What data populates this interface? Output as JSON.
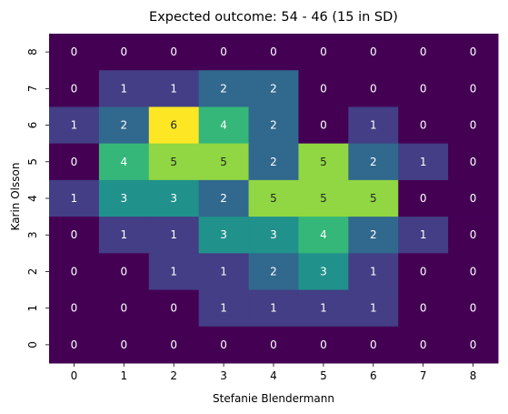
{
  "chart_data": {
    "type": "heatmap",
    "title": "Expected outcome: 54 - 46 (15 in SD)",
    "xlabel": "Stefanie Blendermann",
    "ylabel": "Karin Olsson",
    "x_ticks": [
      "0",
      "1",
      "2",
      "3",
      "4",
      "5",
      "6",
      "7",
      "8"
    ],
    "y_ticks": [
      "8",
      "7",
      "6",
      "5",
      "4",
      "3",
      "2",
      "1",
      "0"
    ],
    "values": [
      [
        0,
        0,
        0,
        0,
        0,
        0,
        0,
        0,
        0
      ],
      [
        0,
        1,
        1,
        2,
        2,
        0,
        0,
        0,
        0
      ],
      [
        1,
        2,
        6,
        4,
        2,
        0,
        1,
        0,
        0
      ],
      [
        0,
        4,
        5,
        5,
        2,
        5,
        2,
        1,
        0
      ],
      [
        1,
        3,
        3,
        2,
        5,
        5,
        5,
        0,
        0
      ],
      [
        0,
        1,
        1,
        3,
        3,
        4,
        2,
        1,
        0
      ],
      [
        0,
        0,
        1,
        1,
        2,
        3,
        1,
        0,
        0
      ],
      [
        0,
        0,
        0,
        1,
        1,
        1,
        1,
        0,
        0
      ],
      [
        0,
        0,
        0,
        0,
        0,
        0,
        0,
        0,
        0
      ]
    ],
    "colormap": "viridis",
    "vmin": 0,
    "vmax": 6,
    "colors": {
      "0": "#440154",
      "1": "#433e85",
      "2": "#31688e",
      "3": "#21918c",
      "4": "#35b779",
      "5": "#90d743",
      "6": "#fde725"
    },
    "grid": false,
    "legend": "none"
  }
}
